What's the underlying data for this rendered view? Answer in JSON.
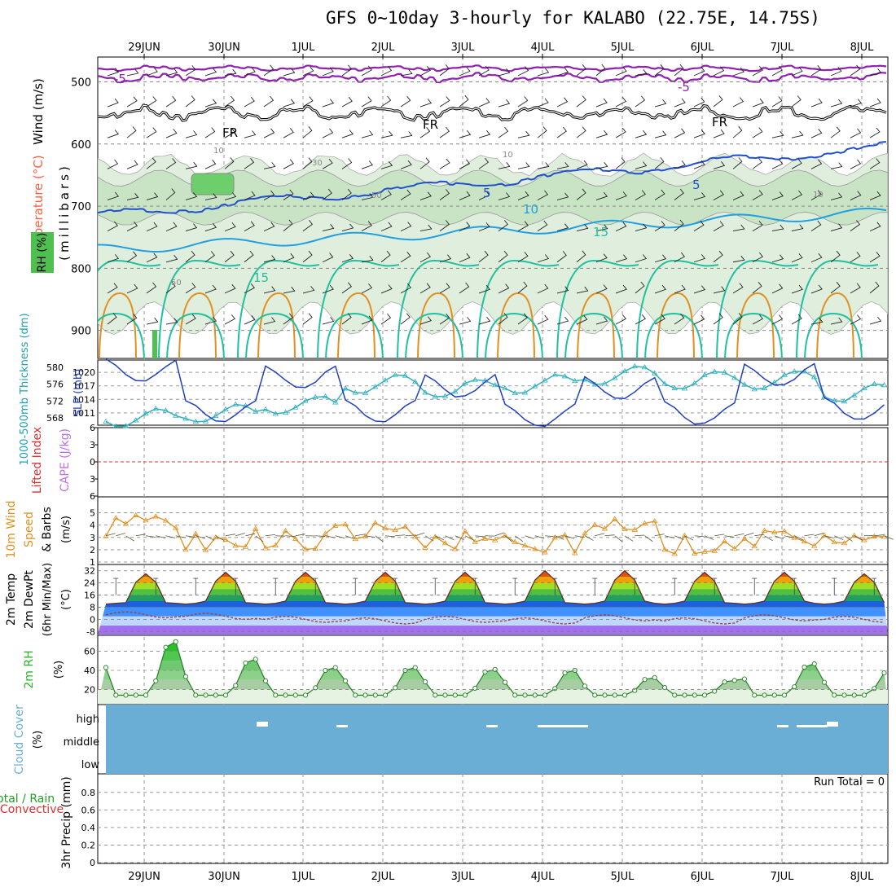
{
  "title": "GFS 0~10day 3-hourly for KALABO (22.75E, 14.75S)",
  "dates": [
    "29JUN",
    "30JUN",
    "1JUL",
    "2JUL",
    "3JUL",
    "4JUL",
    "5JUL",
    "6JUL",
    "7JUL",
    "8JUL"
  ],
  "colors": {
    "temp": "#ff6040",
    "wind": "#000000",
    "rh": "#2ab52a",
    "slp": "#2040c0",
    "thick": "#30b0c0",
    "cape": "#c070e0",
    "li": "#e03030",
    "wind10": "#e09020",
    "dewpt": "#a04040",
    "cloud": "#6aaed6",
    "rain": "#20a020",
    "conv": "#e03030",
    "fr": "#000000",
    "t_m5": "#9020b0",
    "t_5": "#2050d0",
    "t_10": "#20a0e0",
    "t_15": "#20c0a0",
    "t_25": "#e09020"
  },
  "panels": {
    "upper": {
      "label_wind": "Wind (m/s)",
      "label_temp": "Temperature (°C)",
      "label_rh": "RH (%)",
      "label_mb": "(millibars)",
      "yticks": [
        "500",
        "600",
        "700",
        "800",
        "900"
      ],
      "contour_labels": [
        "-5",
        "-5",
        "FR",
        "FR",
        "FR",
        "5",
        "5",
        "10",
        "15",
        "15",
        "10",
        "30",
        "50",
        "50",
        "10",
        "10"
      ]
    },
    "slp": {
      "label_thick": "1000-500mb Thickness (dm)",
      "label_slp": "SLP (mb)",
      "thick_ticks": [
        "580",
        "576",
        "572",
        "568"
      ],
      "slp_ticks": [
        "1020",
        "1017",
        "1014",
        "1011"
      ]
    },
    "cape": {
      "label_li": "Lifted Index",
      "label_cape": "CAPE (J/kg)",
      "ticks": [
        "6",
        "3",
        "0",
        "3",
        "6"
      ]
    },
    "wind10": {
      "label_a": "10m Wind",
      "label_b": "Speed",
      "label_c": "& Barbs",
      "label_unit": "(m/s)",
      "ticks": [
        "5",
        "4",
        "3",
        "2",
        "1"
      ]
    },
    "temp2m": {
      "label_a": "2m Temp",
      "label_b": "2m DewPt",
      "label_c": "(6hr Min/Max)",
      "label_unit": "(°C)",
      "ticks": [
        "32",
        "24",
        "16",
        "8",
        "0",
        "-8"
      ]
    },
    "rh2m": {
      "label": "2m RH",
      "label_unit": "(%)",
      "ticks": [
        "60",
        "40",
        "20"
      ]
    },
    "cloud": {
      "label": "Cloud Cover",
      "label_unit": "(%)",
      "ticks": [
        "high",
        "middle",
        "low"
      ]
    },
    "precip": {
      "label_a": "Total / Rain",
      "label_b": "Convective",
      "label_c": "3hr Precip (mm)",
      "ticks": [
        "0.8",
        "0.6",
        "0.4",
        "0.2",
        "0"
      ],
      "run_total": "Run Total = 0"
    }
  },
  "chart_data": [
    {
      "type": "line",
      "name": "SLP",
      "ylabel": "SLP (mb)",
      "ylim": [
        1009,
        1022
      ],
      "x": [
        "29JUN",
        "30JUN",
        "1JUL",
        "2JUL",
        "3JUL",
        "4JUL",
        "5JUL",
        "6JUL",
        "7JUL",
        "8JUL"
      ],
      "values": [
        1020.5,
        1011.5,
        1019,
        1011.5,
        1017,
        1010.5,
        1016.5,
        1011,
        1019.5,
        1012
      ]
    },
    {
      "type": "line",
      "name": "1000-500mb Thickness",
      "ylabel": "Thickness (dm)",
      "ylim": [
        567,
        581
      ],
      "x": [
        "29JUN",
        "30JUN",
        "1JUL",
        "2JUL",
        "3JUL",
        "4JUL",
        "5JUL",
        "6JUL",
        "7JUL",
        "8JUL"
      ],
      "values": [
        568,
        569,
        571,
        576,
        575,
        576,
        578,
        577,
        577,
        574
      ]
    },
    {
      "type": "line",
      "name": "10m Wind Speed",
      "ylabel": "(m/s)",
      "ylim": [
        1,
        5.5
      ],
      "x": [
        "29JUN",
        "30JUN",
        "1JUL",
        "2JUL",
        "3JUL",
        "4JUL",
        "5JUL",
        "6JUL",
        "7JUL",
        "8JUL"
      ],
      "values": [
        3.8,
        2.8,
        3.0,
        3.1,
        3.0,
        2.8,
        3.6,
        2.6,
        2.8,
        2.8
      ]
    },
    {
      "type": "area",
      "name": "2m Temp",
      "ylabel": "(°C)",
      "ylim": [
        -10,
        34
      ],
      "x": [
        "29JUN",
        "30JUN",
        "1JUL",
        "2JUL",
        "3JUL",
        "4JUL",
        "5JUL",
        "6JUL",
        "7JUL",
        "8JUL"
      ],
      "values": [
        30,
        31,
        31,
        31,
        31,
        32,
        32,
        31,
        31,
        30
      ]
    },
    {
      "type": "line",
      "name": "2m DewPt",
      "ylabel": "(°C)",
      "ylim": [
        -10,
        34
      ],
      "x": [
        "29JUN",
        "30JUN",
        "1JUL",
        "2JUL",
        "3JUL",
        "4JUL",
        "5JUL",
        "6JUL",
        "7JUL",
        "8JUL"
      ],
      "values": [
        3,
        2,
        0,
        -1,
        0,
        -1,
        1,
        -1,
        1,
        0
      ]
    },
    {
      "type": "area",
      "name": "2m RH",
      "ylabel": "(%)",
      "ylim": [
        5,
        75
      ],
      "x": [
        "29JUN",
        "30JUN",
        "1JUL",
        "2JUL",
        "3JUL",
        "4JUL",
        "5JUL",
        "6JUL",
        "7JUL",
        "8JUL"
      ],
      "values": [
        72,
        53,
        44,
        44,
        42,
        41,
        33,
        30,
        48,
        41
      ]
    },
    {
      "type": "bar",
      "name": "3hr Precip",
      "ylabel": "3hr Precip (mm)",
      "ylim": [
        0,
        1
      ],
      "x": [
        "29JUN",
        "30JUN",
        "1JUL",
        "2JUL",
        "3JUL",
        "4JUL",
        "5JUL",
        "6JUL",
        "7JUL",
        "8JUL"
      ],
      "values": [
        0,
        0,
        0,
        0,
        0,
        0,
        0,
        0,
        0,
        0
      ]
    }
  ]
}
